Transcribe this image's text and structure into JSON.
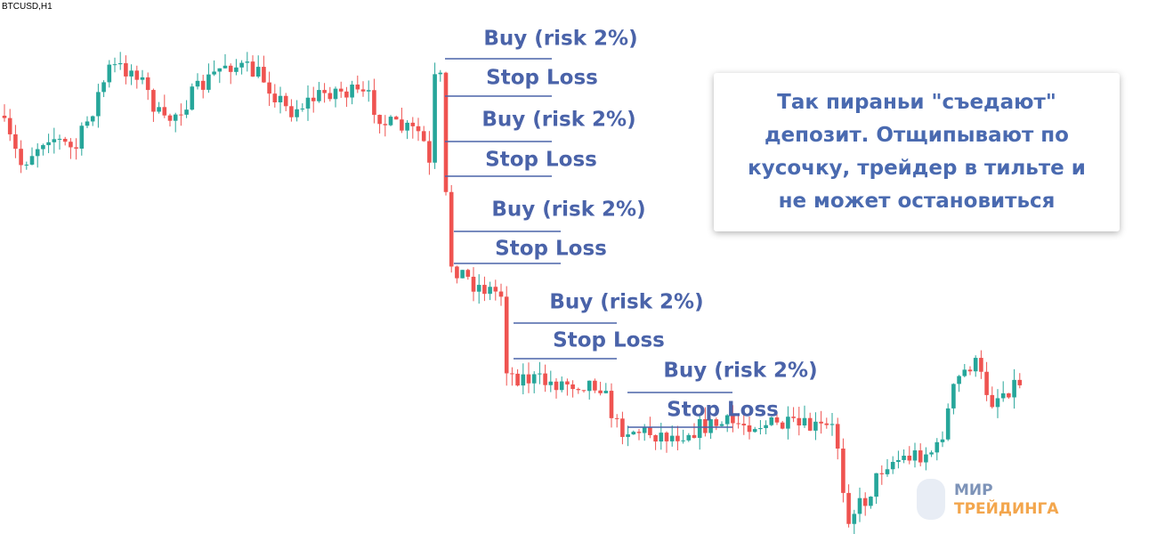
{
  "header": {
    "symbol": "BTCUSD,H1"
  },
  "trades": [
    {
      "entry": "Buy (risk 2%)",
      "exit": "Stop Loss"
    },
    {
      "entry": "Buy (risk 2%)",
      "exit": "Stop Loss"
    },
    {
      "entry": "Buy (risk 2%)",
      "exit": "Stop Loss"
    },
    {
      "entry": "Buy (risk 2%)",
      "exit": "Stop Loss"
    },
    {
      "entry": "Buy (risk 2%)",
      "exit": "Stop Loss"
    }
  ],
  "callout": {
    "lines": [
      "Так пираньи \"съедают\"",
      "депозит. Отщипывают по",
      "кусочку, трейдер в тильте и",
      "не может остановиться"
    ]
  },
  "logo": {
    "line1": "МИР",
    "line2": "ТРЕЙДИНГА"
  }
}
